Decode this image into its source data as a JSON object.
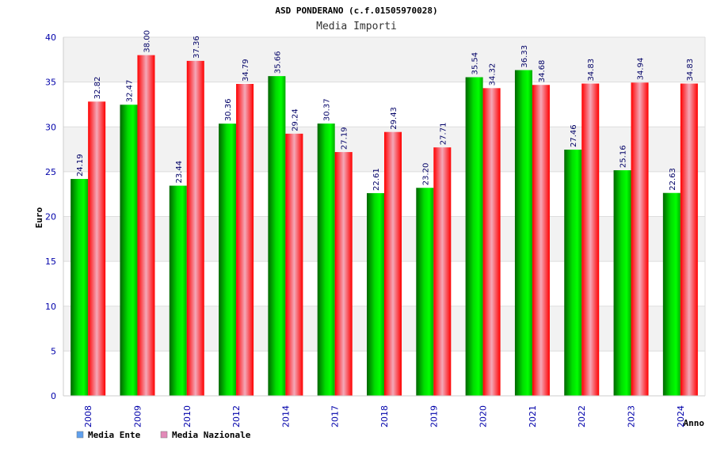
{
  "chart_data": {
    "type": "bar",
    "title": "ASD PONDERANO (c.f.01505970028)",
    "subtitle": "Media Importi",
    "xlabel": "Anno",
    "ylabel": "Euro",
    "ylim": [
      0,
      40
    ],
    "yticks": [
      0,
      5,
      10,
      15,
      20,
      25,
      30,
      35,
      40
    ],
    "grid": true,
    "legend_position": "bottom-left",
    "categories": [
      "2008",
      "2009",
      "2010",
      "2012",
      "2014",
      "2017",
      "2018",
      "2019",
      "2020",
      "2021",
      "2022",
      "2023",
      "2024"
    ],
    "series": [
      {
        "name": "Media Ente",
        "color": "#00cc00",
        "legend_color": "#5fa0ee",
        "values": [
          24.19,
          32.47,
          23.44,
          30.36,
          35.66,
          30.37,
          22.61,
          23.2,
          35.54,
          36.33,
          27.46,
          25.16,
          22.63
        ],
        "labels": [
          "24.19",
          "32.47",
          "23.44",
          "30.36",
          "35.66",
          "30.37",
          "22.61",
          "23.20",
          "35.54",
          "36.33",
          "27.46",
          "25.16",
          "22.63"
        ]
      },
      {
        "name": "Media Nazionale",
        "color": "#ff0000",
        "legend_color": "#e28ab8",
        "values": [
          32.82,
          38.0,
          37.36,
          34.79,
          29.24,
          27.19,
          29.43,
          27.71,
          34.32,
          34.68,
          34.83,
          34.94,
          34.83
        ],
        "labels": [
          "32.82",
          "38.00",
          "37.36",
          "34.79",
          "29.24",
          "27.19",
          "29.43",
          "27.71",
          "34.32",
          "34.68",
          "34.83",
          "34.94",
          "34.83"
        ]
      }
    ]
  }
}
